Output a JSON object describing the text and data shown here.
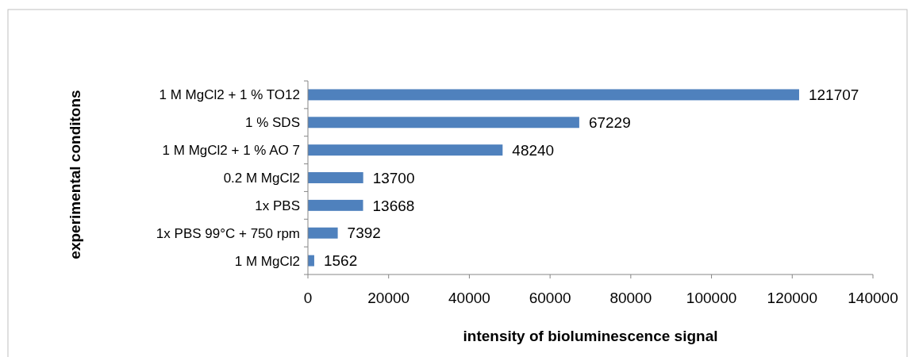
{
  "chart_data": {
    "type": "bar",
    "orientation": "horizontal",
    "xlabel": "intensity of bioluminescence signal",
    "ylabel": "experimental conditons",
    "categories": [
      "1 M MgCl2 + 1 % TO12",
      "1 % SDS",
      "1 M MgCl2 + 1 % AO 7",
      "0.2 M MgCl2",
      "1x PBS",
      "1x PBS 99°C + 750 rpm",
      "1 M MgCl2"
    ],
    "values": [
      121707,
      67229,
      48240,
      13700,
      13668,
      7392,
      1562
    ],
    "color": "#4f81bd",
    "data_labels": true,
    "xlim": [
      0,
      140000
    ],
    "xticks": [
      0,
      20000,
      40000,
      60000,
      80000,
      100000,
      120000,
      140000
    ],
    "grid": false
  }
}
